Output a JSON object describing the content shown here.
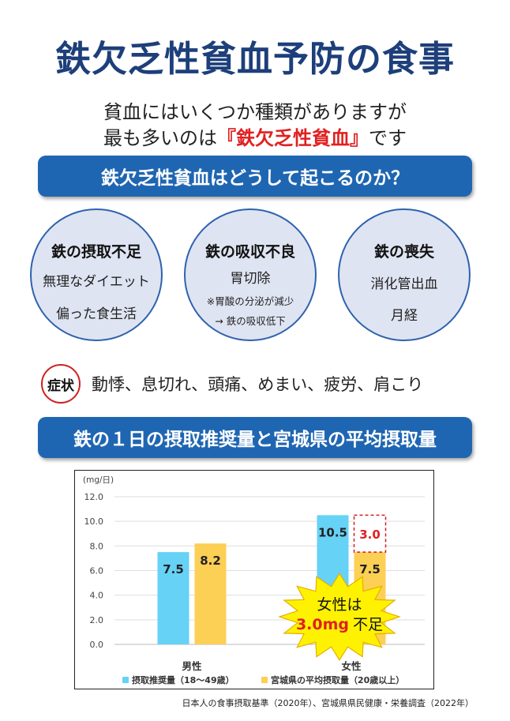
{
  "title": "鉄欠乏性貧血予防の食事",
  "intro": {
    "line1": "貧血にはいくつか種類がありますが",
    "line2_prefix": "最も多いのは",
    "line2_highlight": "『鉄欠乏性貧血』",
    "line2_suffix": "です"
  },
  "section_cause": {
    "heading": "鉄欠乏性貧血はどうして起こるのか？"
  },
  "causes": [
    {
      "title": "鉄の摂取不足",
      "lines": [
        "無理なダイエット",
        "偏った食生活"
      ]
    },
    {
      "title": "鉄の吸収不良",
      "main": "胃切除",
      "notes": [
        "※胃酸の分泌が減少",
        "→ 鉄の吸収低下"
      ]
    },
    {
      "title": "鉄の喪失",
      "lines": [
        "消化管出血",
        "月経"
      ]
    }
  ],
  "symptoms": {
    "label": "症状",
    "text": "動悸、息切れ、頭痛、めまい、疲労、肩こり"
  },
  "section_intake": {
    "heading": "鉄の１日の摂取推奨量と宮城県の平均摂取量"
  },
  "chart_data": {
    "type": "bar",
    "unit_label": "(mg/日)",
    "categories": [
      "男性",
      "女性"
    ],
    "series": [
      {
        "name": "摂取推奨量（18～49歳）",
        "color": "#66d2f5",
        "values": [
          7.5,
          10.5
        ]
      },
      {
        "name": "宮城県の平均摂取量（20歳以上）",
        "color": "#fccf55",
        "values": [
          8.2,
          7.5
        ]
      }
    ],
    "yticks": [
      "0.0",
      "2.0",
      "4.0",
      "6.0",
      "8.0",
      "10.0",
      "12.0"
    ],
    "ylim": [
      0,
      12
    ],
    "grid": true,
    "legend": "bottom",
    "gap_annotation": {
      "category": "女性",
      "value": 3.0,
      "label": "3.0"
    },
    "callout": {
      "line1": "女性は",
      "line2_highlight": "3.0mg",
      "line2_suffix": "不足"
    }
  },
  "source": "日本人の食事摂取基準（2020年）、宮城県県民健康・栄養調査（2022年）"
}
